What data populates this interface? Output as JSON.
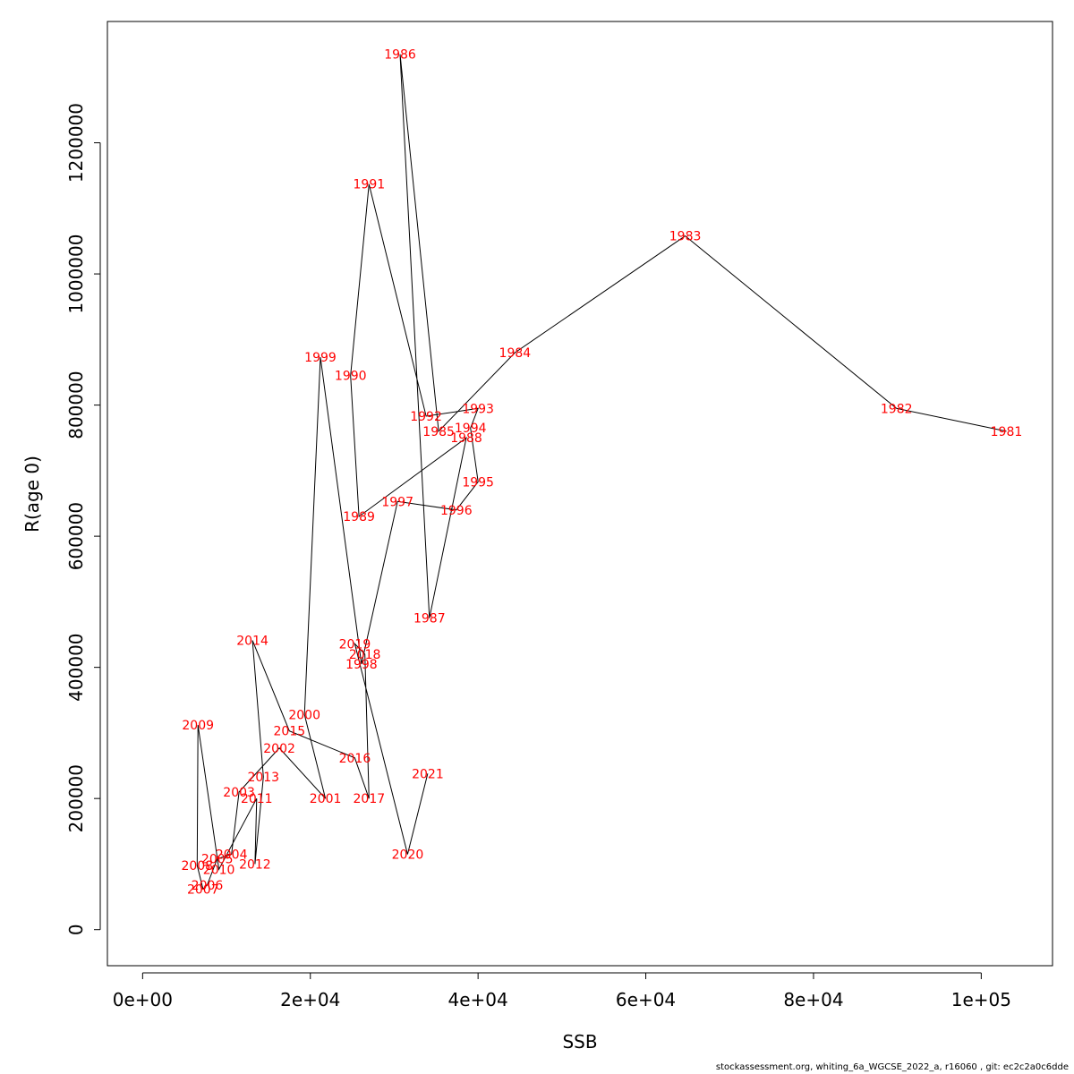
{
  "chart_data": {
    "type": "line",
    "xlabel": "SSB",
    "ylabel": "R(age 0)",
    "xlim": [
      -4200,
      108500
    ],
    "ylim": [
      -55000,
      1385000
    ],
    "x_ticks": [
      0,
      20000,
      40000,
      60000,
      80000,
      100000
    ],
    "x_tick_labels": [
      "0e+00",
      "2e+04",
      "4e+04",
      "6e+04",
      "8e+04",
      "1e+05"
    ],
    "y_ticks": [
      0,
      200000,
      400000,
      600000,
      800000,
      1000000,
      1200000
    ],
    "y_tick_labels": [
      "0",
      "200000",
      "400000",
      "600000",
      "800000",
      "1000000",
      "1200000"
    ],
    "line_color": "#000000",
    "label_color": "#ff0000",
    "points": [
      {
        "year": "1981",
        "x": 103000,
        "y": 760000
      },
      {
        "year": "1982",
        "x": 89900,
        "y": 795000
      },
      {
        "year": "1983",
        "x": 64700,
        "y": 1058000
      },
      {
        "year": "1984",
        "x": 44400,
        "y": 880000
      },
      {
        "year": "1985",
        "x": 35300,
        "y": 760000
      },
      {
        "year": "1986",
        "x": 30700,
        "y": 1335000
      },
      {
        "year": "1987",
        "x": 34200,
        "y": 475000
      },
      {
        "year": "1988",
        "x": 38600,
        "y": 750000
      },
      {
        "year": "1989",
        "x": 25800,
        "y": 630000
      },
      {
        "year": "1990",
        "x": 24800,
        "y": 845000
      },
      {
        "year": "1991",
        "x": 27000,
        "y": 1137000
      },
      {
        "year": "1992",
        "x": 33800,
        "y": 783000
      },
      {
        "year": "1993",
        "x": 40000,
        "y": 795000
      },
      {
        "year": "1994",
        "x": 39100,
        "y": 765000
      },
      {
        "year": "1995",
        "x": 40000,
        "y": 683000
      },
      {
        "year": "1996",
        "x": 37400,
        "y": 640000
      },
      {
        "year": "1997",
        "x": 30400,
        "y": 653000
      },
      {
        "year": "1998",
        "x": 26100,
        "y": 405000
      },
      {
        "year": "1999",
        "x": 21200,
        "y": 873000
      },
      {
        "year": "2000",
        "x": 19300,
        "y": 328000
      },
      {
        "year": "2001",
        "x": 21800,
        "y": 200000
      },
      {
        "year": "2002",
        "x": 16300,
        "y": 277000
      },
      {
        "year": "2003",
        "x": 11500,
        "y": 210000
      },
      {
        "year": "2004",
        "x": 10600,
        "y": 115000
      },
      {
        "year": "2005",
        "x": 8900,
        "y": 108000
      },
      {
        "year": "2006",
        "x": 7700,
        "y": 68000
      },
      {
        "year": "2007",
        "x": 7200,
        "y": 62000
      },
      {
        "year": "2008",
        "x": 6500,
        "y": 98000
      },
      {
        "year": "2009",
        "x": 6600,
        "y": 312000
      },
      {
        "year": "2010",
        "x": 9100,
        "y": 92000
      },
      {
        "year": "2011",
        "x": 13600,
        "y": 200000
      },
      {
        "year": "2012",
        "x": 13400,
        "y": 100000
      },
      {
        "year": "2013",
        "x": 14400,
        "y": 233000
      },
      {
        "year": "2014",
        "x": 13100,
        "y": 441000
      },
      {
        "year": "2015",
        "x": 17500,
        "y": 303000
      },
      {
        "year": "2016",
        "x": 25300,
        "y": 262000
      },
      {
        "year": "2017",
        "x": 27000,
        "y": 200000
      },
      {
        "year": "2018",
        "x": 26500,
        "y": 420000
      },
      {
        "year": "2019",
        "x": 25300,
        "y": 436000
      },
      {
        "year": "2020",
        "x": 31600,
        "y": 115000
      },
      {
        "year": "2021",
        "x": 34000,
        "y": 238000
      }
    ]
  },
  "footer": "stockassessment.org, whiting_6a_WGCSE_2022_a, r16060 , git: ec2c2a0c6dde"
}
